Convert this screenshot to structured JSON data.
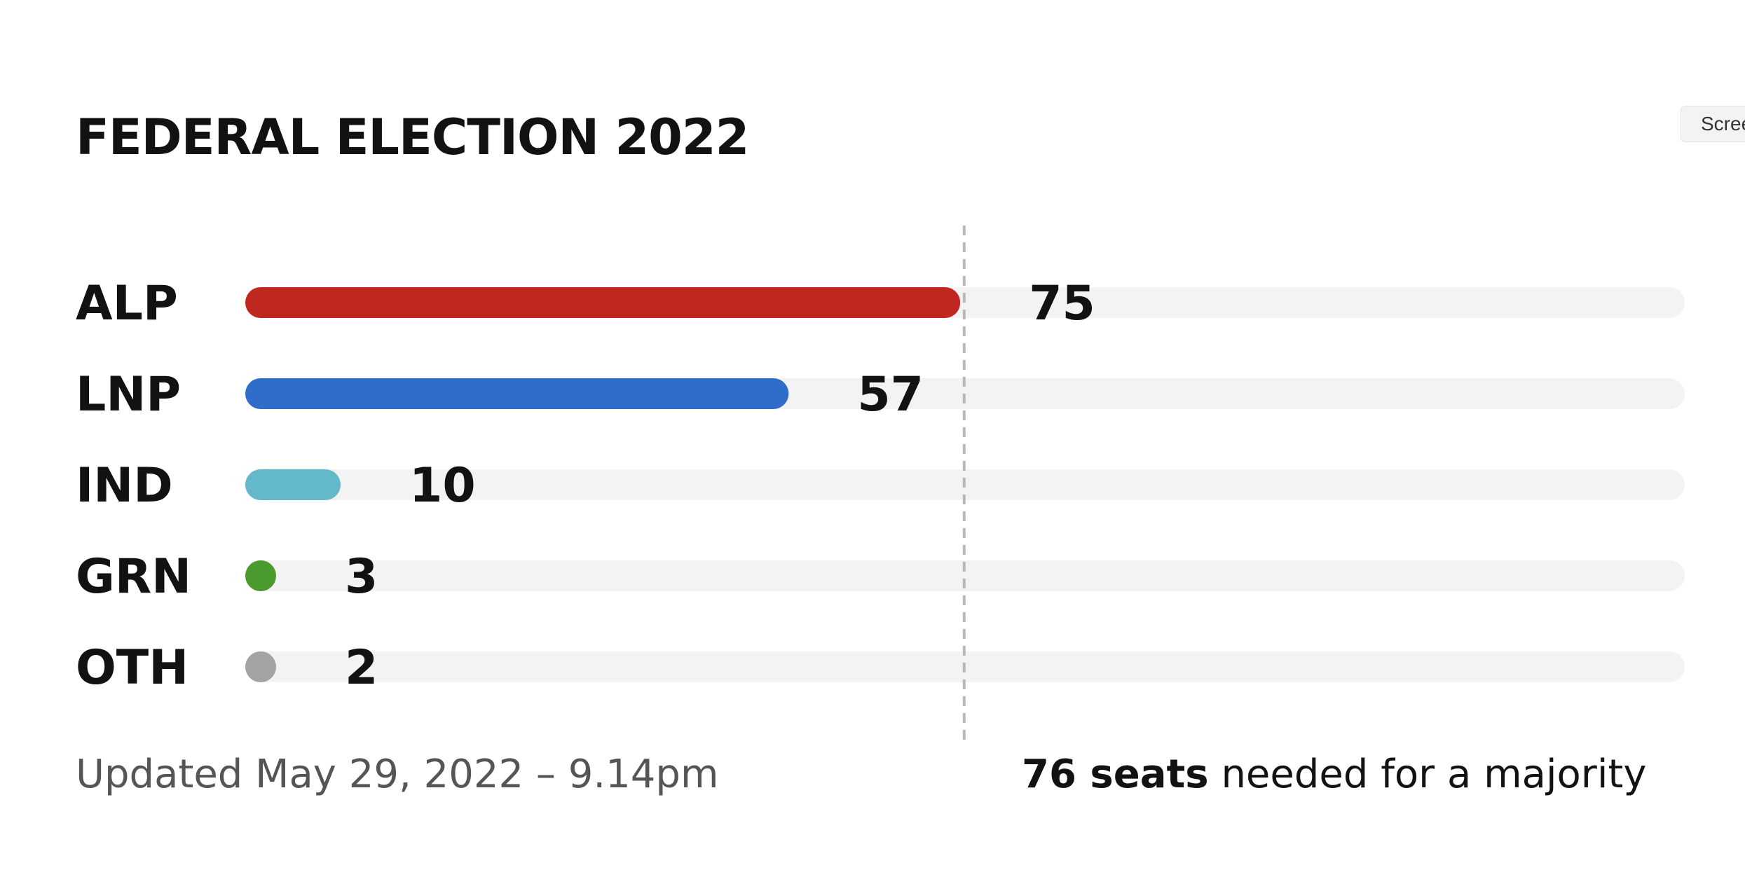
{
  "title": "FEDERAL ELECTION 2022",
  "screenshot_button": {
    "label": "Scree"
  },
  "updated": "Updated May 29, 2022 – 9.14pm",
  "majority_note": {
    "emphasis": "76 seats",
    "rest": " needed for a majority"
  },
  "chart_data": {
    "type": "bar",
    "orientation": "horizontal",
    "title": "FEDERAL ELECTION 2022",
    "categories": [
      "ALP",
      "LNP",
      "IND",
      "GRN",
      "OTH"
    ],
    "values": [
      75,
      57,
      10,
      3,
      2
    ],
    "colors": [
      "#c0281f",
      "#2e6dc9",
      "#63b8c9",
      "#4a9a2e",
      "#a3a3a3"
    ],
    "track_color": "#f3f3f3",
    "xlim": [
      0,
      151
    ],
    "majority_line": 76,
    "majority_line_color": "#b8b8b8",
    "grid": false,
    "legend": "none"
  }
}
